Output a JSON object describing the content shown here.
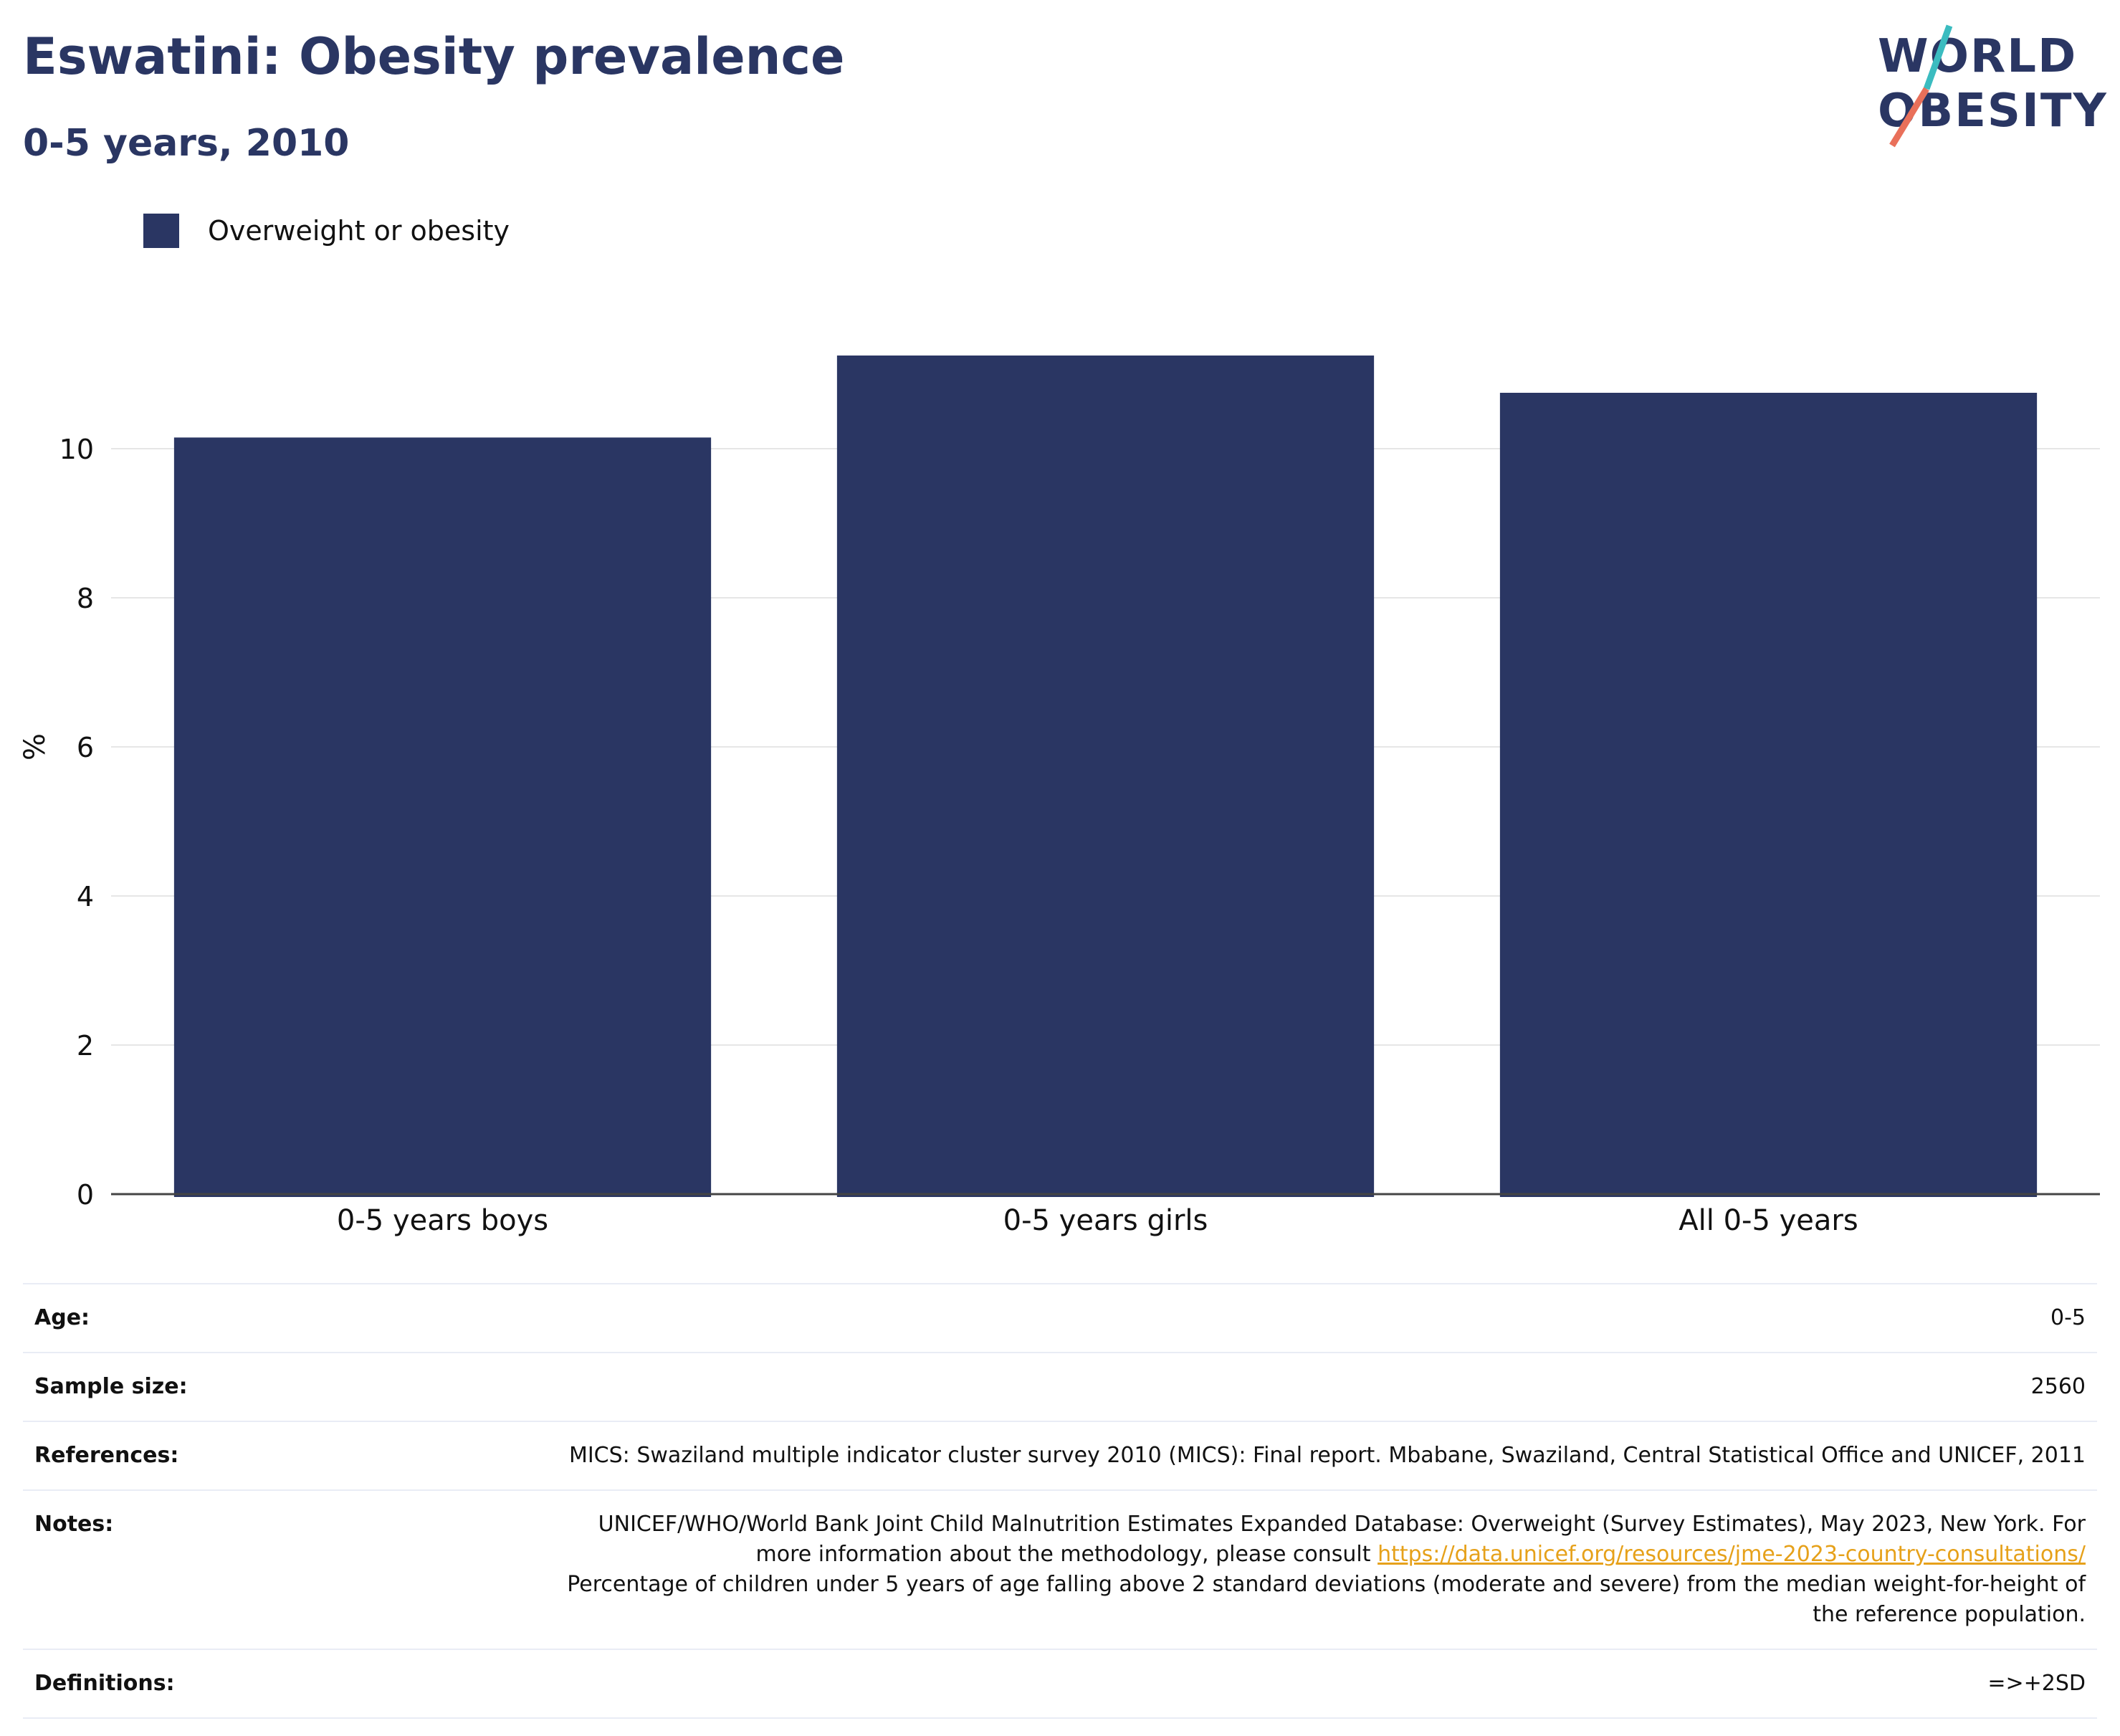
{
  "header": {
    "title": "Eswatini: Obesity prevalence",
    "subtitle": "0-5 years, 2010"
  },
  "logo": {
    "line1": "WORLD",
    "line2": "OBESITY"
  },
  "colors": {
    "bar": "#2a3663",
    "title": "#2a3663",
    "link": "#e6a11a",
    "logo_teal": "#3bbcc0",
    "logo_coral": "#e9705a"
  },
  "chart_data": {
    "type": "bar",
    "categories": [
      "0-5 years boys",
      "0-5 years girls",
      "All 0-5 years"
    ],
    "series": [
      {
        "name": "Overweight or obesity",
        "values": [
          10.15,
          11.25,
          10.75
        ]
      }
    ],
    "ylabel": "%",
    "ylim": [
      0,
      12
    ],
    "yticks": [
      0,
      2,
      4,
      6,
      8,
      10
    ],
    "grid": true,
    "legend": "top-left"
  },
  "info": {
    "age_label": "Age:",
    "age_value": "0-5",
    "sample_label": "Sample size:",
    "sample_value": "2560",
    "references_label": "References:",
    "references_value": "MICS: Swaziland multiple indicator cluster survey 2010 (MICS): Final report. Mbabane, Swaziland, Central Statistical Office and UNICEF, 2011",
    "notes_label": "Notes:",
    "notes_text1": "UNICEF/WHO/World Bank Joint Child Malnutrition Estimates Expanded Database: Overweight (Survey Estimates), May 2023, New York. For more information about the methodology, please consult",
    "notes_link": "https://data.unicef.org/resources/jme-2023-country-consultations/",
    "notes_text2": "Percentage of children under 5 years of age falling above 2 standard deviations (moderate and severe) from the median weight-for-height of the reference population.",
    "definitions_label": "Definitions:",
    "definitions_value": "=>+2SD"
  }
}
